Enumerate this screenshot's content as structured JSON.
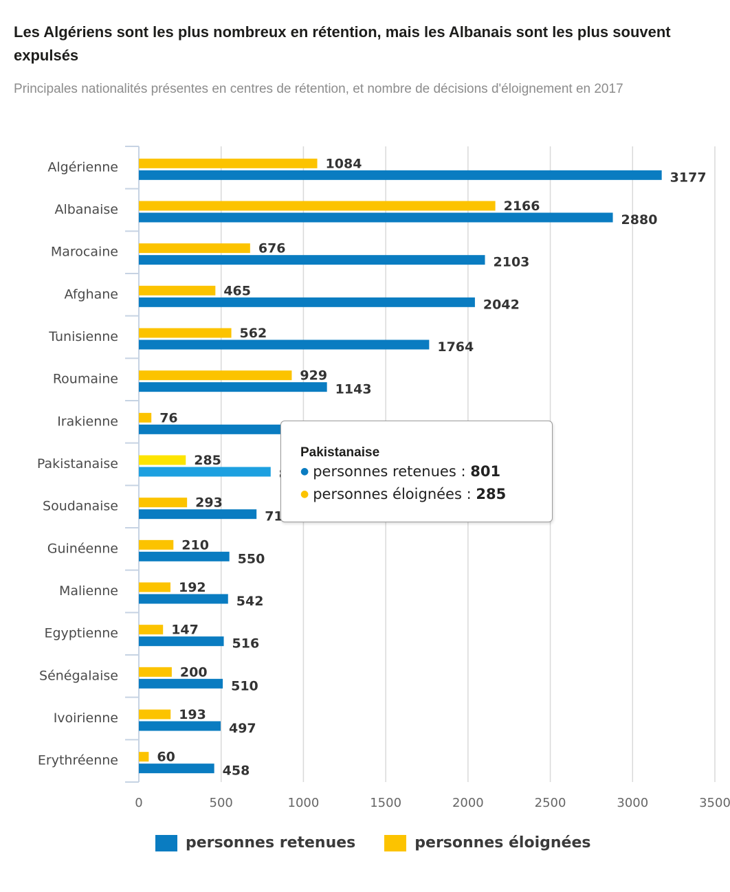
{
  "title": "Les Algériens sont les plus nombreux en rétention, mais les Albanais sont les plus souvent expulsés",
  "subtitle": "Principales nationalités présentes en centres de rétention, et nombre de décisions d'éloignement en 2017",
  "colors": {
    "retenues": "#0a7cc1",
    "eloignees": "#fcc300",
    "retenues_hover": "#1da0e0",
    "eloignees_hover": "#fde400"
  },
  "chart_data": {
    "type": "bar",
    "orientation": "horizontal",
    "categories": [
      "Algérienne",
      "Albanaise",
      "Marocaine",
      "Afghane",
      "Tunisienne",
      "Roumaine",
      "Irakienne",
      "Pakistanaise",
      "Soudanaise",
      "Guinéenne",
      "Malienne",
      "Egyptienne",
      "Sénégalaise",
      "Ivoirienne",
      "Erythréenne"
    ],
    "series": [
      {
        "name": "personnes retenues",
        "values": [
          3177,
          2880,
          2103,
          2042,
          1764,
          1143,
          860,
          801,
          715,
          550,
          542,
          516,
          510,
          497,
          458
        ]
      },
      {
        "name": "personnes éloignées",
        "values": [
          1084,
          2166,
          676,
          465,
          562,
          929,
          76,
          285,
          293,
          210,
          192,
          147,
          200,
          193,
          60
        ]
      }
    ],
    "xlim": [
      0,
      3500
    ],
    "xticks": [
      0,
      500,
      1000,
      1500,
      2000,
      2500,
      3000,
      3500
    ],
    "xlabel": "",
    "ylabel": "",
    "grid": true,
    "legend": "bottom",
    "highlighted_category": "Pakistanaise"
  },
  "tooltip": {
    "title": "Pakistanaise",
    "rows": [
      {
        "label": "personnes retenues",
        "sep": " : ",
        "value": "801"
      },
      {
        "label": "personnes éloignées",
        "sep": " : ",
        "value": "285"
      }
    ]
  },
  "legend": {
    "retenues_label": "personnes retenues",
    "eloignees_label": "personnes éloignées"
  }
}
